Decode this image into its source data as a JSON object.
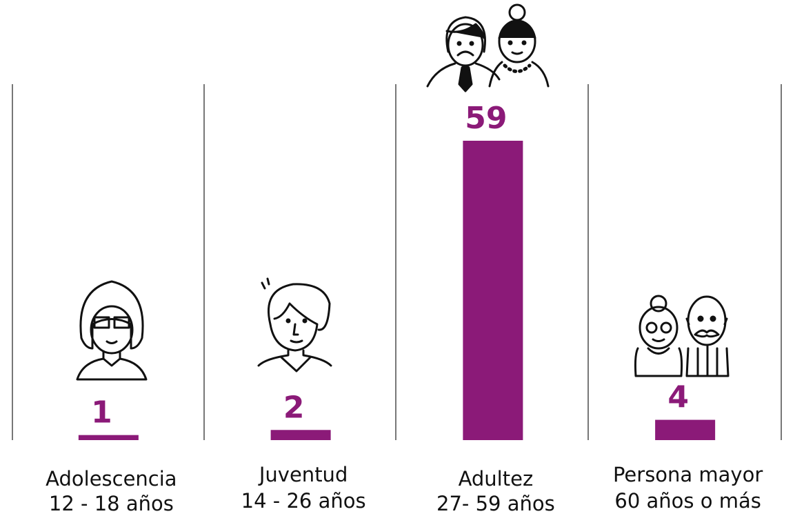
{
  "chart_data": {
    "type": "bar",
    "categories": [
      "Adolescencia",
      "Juventud",
      "Adultez",
      "Persona mayor"
    ],
    "category_ranges": [
      "12 - 18 años",
      "14 - 26 años",
      "27- 59 años",
      "60 años o más"
    ],
    "values": [
      1,
      2,
      59,
      4
    ],
    "color": "#8b1a78",
    "ylim": [
      0,
      59
    ]
  }
}
